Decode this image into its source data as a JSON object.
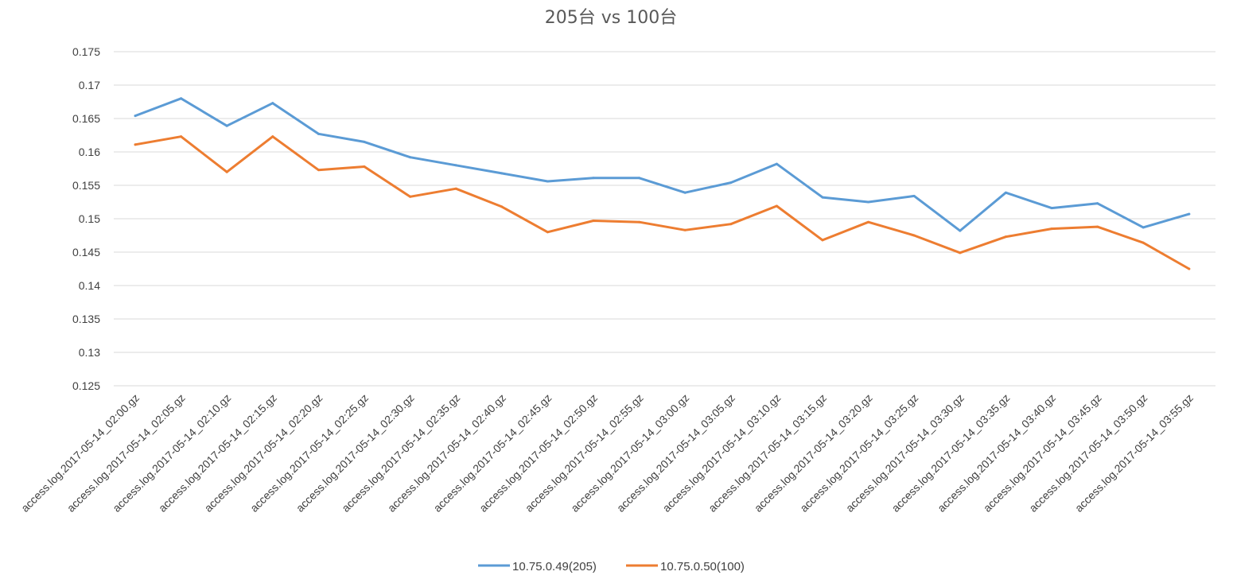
{
  "chart_data": {
    "type": "line",
    "title": "205台  vs 100台",
    "xlabel": "",
    "ylabel": "",
    "ylim": [
      0.125,
      0.175
    ],
    "yticks": [
      "0.175",
      "0.17",
      "0.165",
      "0.16",
      "0.155",
      "0.15",
      "0.145",
      "0.14",
      "0.135",
      "0.13",
      "0.125"
    ],
    "grid": true,
    "legend_position": "bottom",
    "categories": [
      "access.log.2017-05-14_02:00.gz",
      "access.log.2017-05-14_02:05.gz",
      "access.log.2017-05-14_02:10.gz",
      "access.log.2017-05-14_02:15.gz",
      "access.log.2017-05-14_02:20.gz",
      "access.log.2017-05-14_02:25.gz",
      "access.log.2017-05-14_02:30.gz",
      "access.log.2017-05-14_02:35.gz",
      "access.log.2017-05-14_02:40.gz",
      "access.log.2017-05-14_02:45.gz",
      "access.log.2017-05-14_02:50.gz",
      "access.log.2017-05-14_02:55.gz",
      "access.log.2017-05-14_03:00.gz",
      "access.log.2017-05-14_03:05.gz",
      "access.log.2017-05-14_03:10.gz",
      "access.log.2017-05-14_03:15.gz",
      "access.log.2017-05-14_03:20.gz",
      "access.log.2017-05-14_03:25.gz",
      "access.log.2017-05-14_03:30.gz",
      "access.log.2017-05-14_03:35.gz",
      "access.log.2017-05-14_03:40.gz",
      "access.log.2017-05-14_03:45.gz",
      "access.log.2017-05-14_03:50.gz",
      "access.log.2017-05-14_03:55.gz"
    ],
    "series": [
      {
        "name": "10.75.0.49(205)",
        "color": "#5b9bd5",
        "values": [
          0.1654,
          0.168,
          0.1639,
          0.1673,
          0.1627,
          0.1615,
          0.1592,
          0.158,
          0.1568,
          0.1556,
          0.1561,
          0.1561,
          0.1539,
          0.1554,
          0.1582,
          0.1532,
          0.1525,
          0.1534,
          0.1482,
          0.1539,
          0.1516,
          0.1523,
          0.1487,
          0.1507
        ]
      },
      {
        "name": "10.75.0.50(100)",
        "color": "#ed7d31",
        "values": [
          0.1611,
          0.1623,
          0.157,
          0.1623,
          0.1573,
          0.1578,
          0.1533,
          0.1545,
          0.1518,
          0.148,
          0.1497,
          0.1495,
          0.1483,
          0.1492,
          0.1519,
          0.1468,
          0.1495,
          0.1475,
          0.1449,
          0.1473,
          0.1485,
          0.1488,
          0.1464,
          0.1425
        ]
      }
    ]
  }
}
